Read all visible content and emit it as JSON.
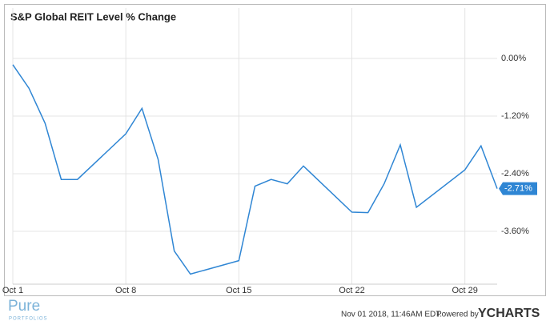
{
  "chart_data": {
    "type": "line",
    "title": "S&P Global REIT Level % Change",
    "x": [
      "Oct 1",
      "Oct 2",
      "Oct 3",
      "Oct 4",
      "Oct 5",
      "Oct 8",
      "Oct 9",
      "Oct 10",
      "Oct 11",
      "Oct 12",
      "Oct 15",
      "Oct 16",
      "Oct 17",
      "Oct 18",
      "Oct 19",
      "Oct 22",
      "Oct 23",
      "Oct 24",
      "Oct 25",
      "Oct 26",
      "Oct 29",
      "Oct 30",
      "Oct 31"
    ],
    "series": [
      {
        "color": "#2f86d4",
        "values": [
          -0.13,
          -0.62,
          -1.35,
          -2.52,
          -2.52,
          -1.57,
          -1.04,
          -2.1,
          -4.01,
          -4.49,
          -4.21,
          -2.66,
          -2.52,
          -2.61,
          -2.24,
          -3.2,
          -3.21,
          -2.61,
          -1.8,
          -3.1,
          -2.32,
          -1.82,
          -2.71
        ],
        "value_labels": [
          null,
          null,
          null,
          null,
          null,
          null,
          null,
          null,
          null,
          null,
          null,
          null,
          null,
          null,
          null,
          null,
          null,
          null,
          null,
          null,
          null,
          null,
          "-2.71%"
        ]
      }
    ],
    "xlim": [
      "Oct 1",
      "Oct 31"
    ],
    "xticks": [
      "Oct 1",
      "Oct 8",
      "Oct 15",
      "Oct 22",
      "Oct 29"
    ],
    "ylim": [
      -4.7,
      1.05
    ],
    "yticks": [
      {
        "value": 0,
        "label": "0.00%"
      },
      {
        "value": -1.2,
        "label": "-1.20%"
      },
      {
        "value": -2.4,
        "label": "-2.40%"
      },
      {
        "value": -3.6,
        "label": "-3.60%"
      }
    ],
    "grid": true
  },
  "footer": {
    "logo": "Pure",
    "logo_sub": "PORTFOLIOS",
    "timestamp": "Nov 01 2018, 11:46AM EDT.",
    "powered_by": "Powered by",
    "brand": "YCHARTS"
  }
}
